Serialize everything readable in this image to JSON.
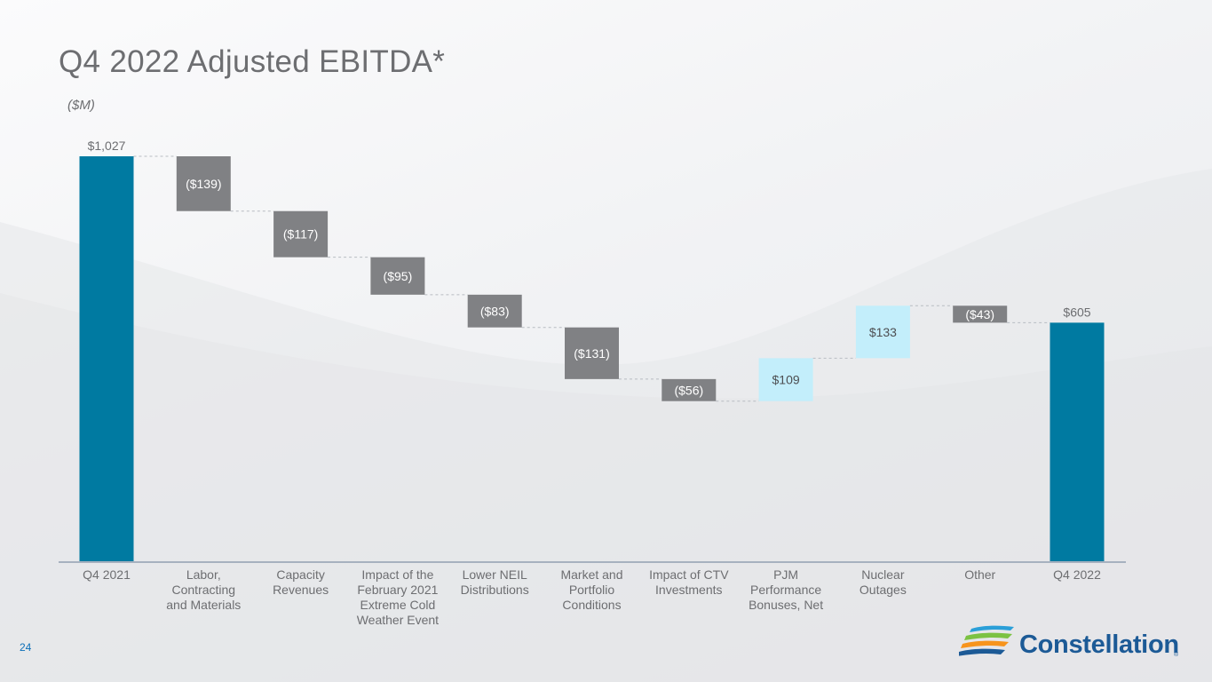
{
  "header": {
    "title": "Q4 2022 Adjusted EBITDA*",
    "unit": "($M)"
  },
  "footer": {
    "page_number": "24",
    "logo_text": "Constellation",
    "logo_reg": "®"
  },
  "colors": {
    "total": "#007aa1",
    "decrease": "#808184",
    "increase": "#c3eefb",
    "axis": "#a7b1bf",
    "connector": "#b8bcc2",
    "label": "#6d6e71"
  },
  "chart_data": {
    "type": "bar",
    "subtype": "waterfall",
    "unit": "($M)",
    "ylim": [
      0,
      1027
    ],
    "grid": false,
    "legend": "none",
    "categories": [
      [
        "Q4 2021"
      ],
      [
        "Labor,",
        "Contracting",
        "and Materials"
      ],
      [
        "Capacity",
        "Revenues"
      ],
      [
        "Impact of the",
        "February 2021",
        "Extreme Cold",
        "Weather Event"
      ],
      [
        "Lower NEIL",
        "Distributions"
      ],
      [
        "Market and",
        "Portfolio",
        "Conditions"
      ],
      [
        "Impact of CTV",
        "Investments"
      ],
      [
        "PJM",
        "Performance",
        "Bonuses, Net"
      ],
      [
        "Nuclear",
        "Outages"
      ],
      [
        "Other"
      ],
      [
        "Q4 2022"
      ]
    ],
    "values": [
      1027,
      -139,
      -117,
      -95,
      -83,
      -131,
      -56,
      109,
      133,
      -43,
      605
    ],
    "kinds": [
      "total",
      "decrease",
      "decrease",
      "decrease",
      "decrease",
      "decrease",
      "decrease",
      "increase",
      "increase",
      "decrease",
      "total"
    ],
    "data_labels": [
      "$1,027",
      "($139)",
      "($117)",
      "($95)",
      "($83)",
      "($131)",
      "($56)",
      "$109",
      "$133",
      "($43)",
      "$605"
    ]
  }
}
